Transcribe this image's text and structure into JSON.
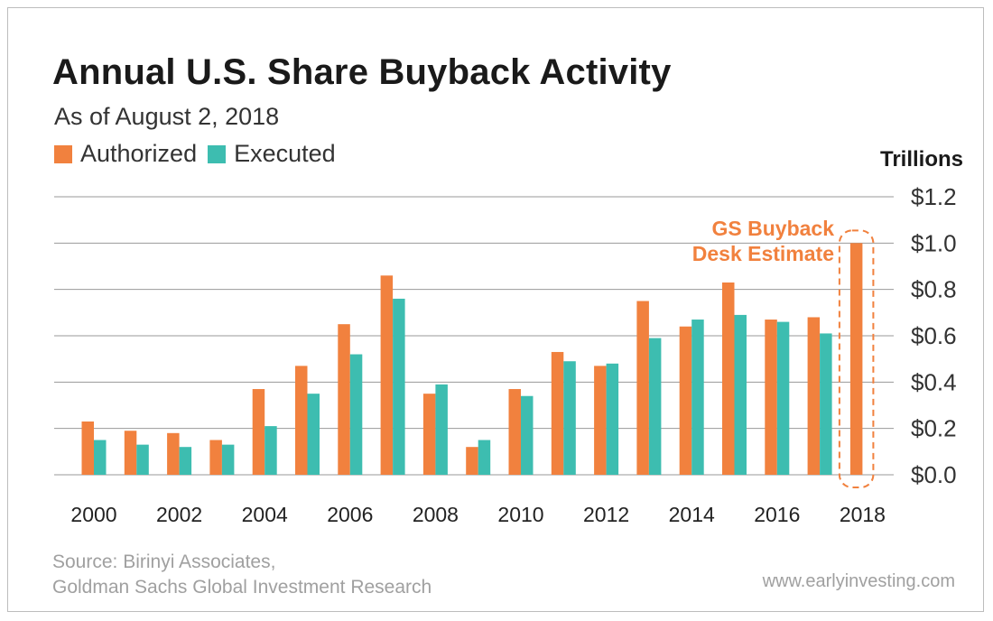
{
  "colors": {
    "authorized": "#f1813e",
    "executed": "#3dbdb0",
    "grid": "#999999"
  },
  "chart_data": {
    "type": "bar",
    "title": "Annual U.S. Share Buyback Activity",
    "subtitle": "As of August 2, 2018",
    "ylabel": "Trillions",
    "ylim": [
      0,
      1.2
    ],
    "y_ticks": [
      "$1.2",
      "$1.0",
      "$0.8",
      "$0.6",
      "$0.4",
      "$0.2",
      "$0.0"
    ],
    "y_tick_values": [
      1.2,
      1.0,
      0.8,
      0.6,
      0.4,
      0.2,
      0.0
    ],
    "categories": [
      "2000",
      "2001",
      "2002",
      "2003",
      "2004",
      "2005",
      "2006",
      "2007",
      "2008",
      "2009",
      "2010",
      "2011",
      "2012",
      "2013",
      "2014",
      "2015",
      "2016",
      "2017",
      "2018"
    ],
    "x_tick_labels": [
      "2000",
      "2002",
      "2004",
      "2006",
      "2008",
      "2010",
      "2012",
      "2014",
      "2016",
      "2018"
    ],
    "series": [
      {
        "name": "Authorized",
        "values": [
          0.23,
          0.19,
          0.18,
          0.15,
          0.37,
          0.47,
          0.65,
          0.86,
          0.35,
          0.12,
          0.37,
          0.53,
          0.47,
          0.75,
          0.64,
          0.83,
          0.67,
          0.68,
          1.0
        ]
      },
      {
        "name": "Executed",
        "values": [
          0.15,
          0.13,
          0.12,
          0.13,
          0.21,
          0.35,
          0.52,
          0.76,
          0.39,
          0.15,
          0.34,
          0.49,
          0.48,
          0.59,
          0.67,
          0.69,
          0.66,
          0.61,
          null
        ]
      }
    ],
    "annotation": {
      "line1": "GS Buyback",
      "line2": "Desk Estimate"
    },
    "legend_position": "top-left"
  },
  "source": {
    "line1": "Source: Birinyi Associates,",
    "line2": "Goldman Sachs Global Investment Research"
  },
  "url": "www.earlyinvesting.com"
}
